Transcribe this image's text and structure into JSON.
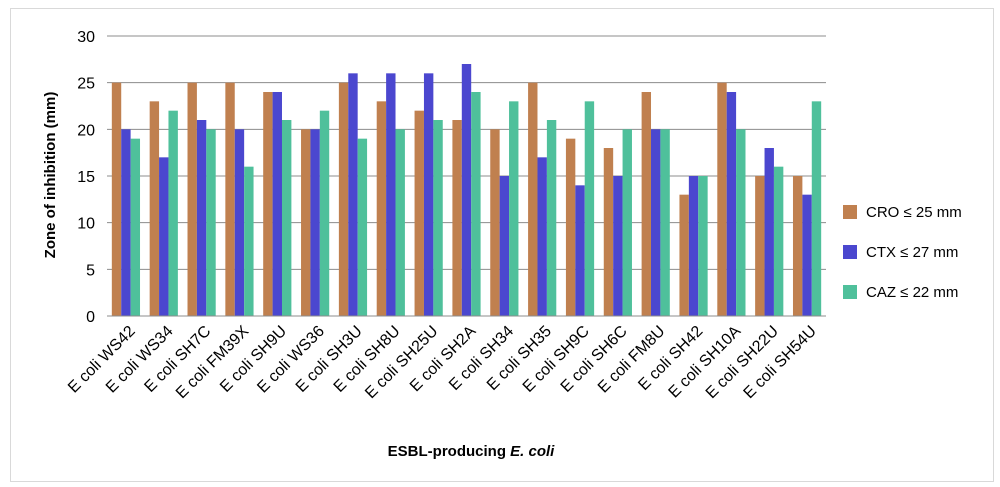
{
  "chart_data": {
    "type": "bar",
    "title": "",
    "ylabel": "Zone of inhibition  (mm)",
    "xlabel_main": "ESBL-producing ",
    "xlabel_italic": "E. coli",
    "ylim": [
      0,
      30
    ],
    "yticks": [
      0,
      5,
      10,
      15,
      20,
      25,
      30
    ],
    "grid": true,
    "legend_position": "right",
    "categories": [
      "E coli WS42",
      "E coli WS34",
      "E coli SH7C",
      "E coli FM39X",
      "E coli SH9U",
      "E coli WS36",
      "E coli SH3U",
      "E coli SH8U",
      "E coli SH25U",
      "E coli SH2A",
      "E coli SH34",
      "E coli SH35",
      "E coli SH9C",
      "E coli SH6C",
      "E coli FM8U",
      "E coli SH42",
      "E coli SH10A",
      "E coli SH22U",
      "E coli SH54U"
    ],
    "series": [
      {
        "name": "CRO ≤ 25 mm",
        "color": "#c0804f",
        "values": [
          25,
          23,
          25,
          25,
          24,
          20,
          25,
          23,
          22,
          21,
          20,
          25,
          19,
          18,
          24,
          13,
          25,
          15,
          15
        ]
      },
      {
        "name": "CTX ≤ 27 mm",
        "color": "#4b47cf",
        "values": [
          20,
          17,
          21,
          20,
          24,
          20,
          26,
          26,
          26,
          27,
          15,
          17,
          14,
          15,
          20,
          15,
          24,
          18,
          13
        ]
      },
      {
        "name": "CAZ ≤ 22 mm",
        "color": "#4fc09b",
        "values": [
          19,
          22,
          20,
          16,
          21,
          22,
          19,
          20,
          21,
          24,
          23,
          21,
          23,
          20,
          20,
          15,
          20,
          16,
          23
        ]
      }
    ]
  }
}
